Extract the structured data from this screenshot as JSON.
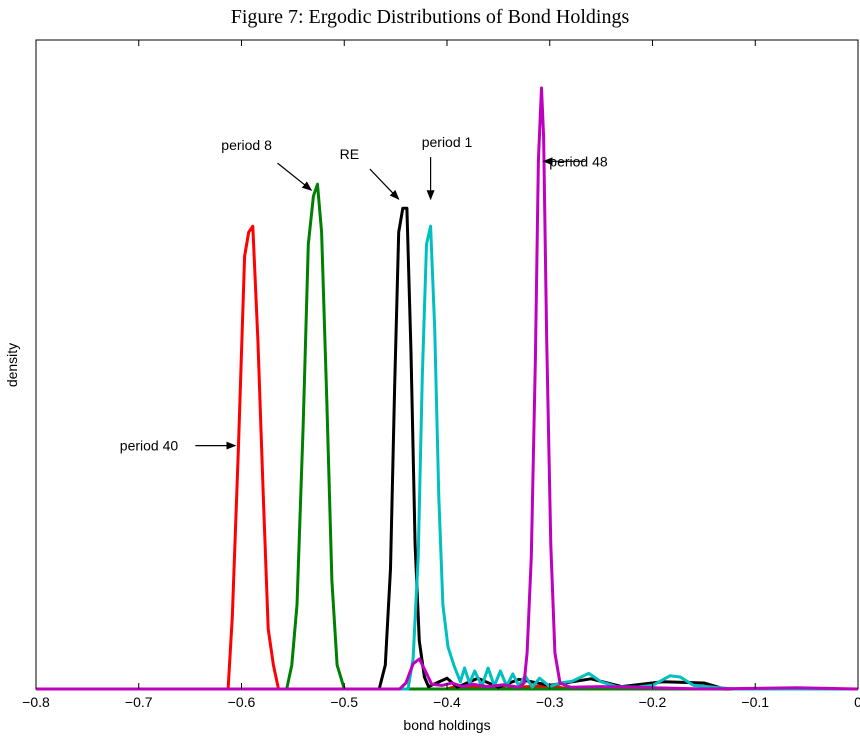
{
  "chart_data": {
    "type": "line",
    "title": "Figure 7: Ergodic Distributions of Bond Holdings",
    "xlabel": "bond holdings",
    "ylabel": "density",
    "xlim": [
      -0.8,
      0
    ],
    "ylim": [
      0,
      1
    ],
    "x_ticks": [
      "−0.8",
      "−0.7",
      "−0.6",
      "−0.5",
      "−0.4",
      "−0.3",
      "−0.2",
      "−0.1",
      "0"
    ],
    "x_tick_values": [
      -0.8,
      -0.7,
      -0.6,
      -0.5,
      -0.4,
      -0.3,
      -0.2,
      -0.1,
      0
    ],
    "grid": false,
    "series": [
      {
        "name": "period 40",
        "color": "#ff0000",
        "points": [
          [
            -0.8,
            0
          ],
          [
            -0.613,
            0
          ],
          [
            -0.609,
            0.12
          ],
          [
            -0.603,
            0.4
          ],
          [
            -0.597,
            0.72
          ],
          [
            -0.593,
            0.76
          ],
          [
            -0.589,
            0.77
          ],
          [
            -0.584,
            0.58
          ],
          [
            -0.579,
            0.33
          ],
          [
            -0.574,
            0.1
          ],
          [
            -0.569,
            0.04
          ],
          [
            -0.564,
            0.0
          ],
          [
            -0.4,
            0.0
          ],
          [
            -0.39,
            0.005
          ],
          [
            -0.34,
            0.003
          ],
          [
            -0.3,
            0.005
          ],
          [
            -0.28,
            0.0
          ],
          [
            0,
            0
          ]
        ]
      },
      {
        "name": "period 8",
        "color": "#008000",
        "points": [
          [
            -0.8,
            0
          ],
          [
            -0.556,
            0
          ],
          [
            -0.551,
            0.04
          ],
          [
            -0.546,
            0.14
          ],
          [
            -0.54,
            0.44
          ],
          [
            -0.535,
            0.74
          ],
          [
            -0.53,
            0.82
          ],
          [
            -0.526,
            0.84
          ],
          [
            -0.522,
            0.76
          ],
          [
            -0.517,
            0.48
          ],
          [
            -0.512,
            0.18
          ],
          [
            -0.507,
            0.04
          ],
          [
            -0.5,
            0.0
          ],
          [
            0,
            0
          ]
        ]
      },
      {
        "name": "RE",
        "color": "#000000",
        "points": [
          [
            -0.8,
            0
          ],
          [
            -0.466,
            0
          ],
          [
            -0.46,
            0.04
          ],
          [
            -0.455,
            0.2
          ],
          [
            -0.451,
            0.5
          ],
          [
            -0.447,
            0.76
          ],
          [
            -0.443,
            0.8
          ],
          [
            -0.439,
            0.8
          ],
          [
            -0.435,
            0.56
          ],
          [
            -0.431,
            0.24
          ],
          [
            -0.427,
            0.08
          ],
          [
            -0.422,
            0.02
          ],
          [
            -0.418,
            0.004
          ],
          [
            -0.4,
            0.018
          ],
          [
            -0.39,
            0.003
          ],
          [
            -0.37,
            0.018
          ],
          [
            -0.35,
            0.003
          ],
          [
            -0.33,
            0.016
          ],
          [
            -0.3,
            0.006
          ],
          [
            -0.26,
            0.017
          ],
          [
            -0.23,
            0.004
          ],
          [
            -0.19,
            0.012
          ],
          [
            -0.15,
            0.01
          ],
          [
            -0.13,
            0.0
          ],
          [
            0,
            0
          ]
        ]
      },
      {
        "name": "period 1",
        "color": "#00bfbf",
        "points": [
          [
            -0.8,
            0
          ],
          [
            -0.438,
            0
          ],
          [
            -0.433,
            0.05
          ],
          [
            -0.428,
            0.22
          ],
          [
            -0.424,
            0.52
          ],
          [
            -0.42,
            0.74
          ],
          [
            -0.416,
            0.77
          ],
          [
            -0.412,
            0.6
          ],
          [
            -0.408,
            0.32
          ],
          [
            -0.404,
            0.14
          ],
          [
            -0.399,
            0.07
          ],
          [
            -0.393,
            0.038
          ],
          [
            -0.387,
            0.012
          ],
          [
            -0.383,
            0.035
          ],
          [
            -0.378,
            0.01
          ],
          [
            -0.373,
            0.03
          ],
          [
            -0.366,
            0.005
          ],
          [
            -0.36,
            0.035
          ],
          [
            -0.354,
            0.005
          ],
          [
            -0.348,
            0.03
          ],
          [
            -0.342,
            0.005
          ],
          [
            -0.336,
            0.025
          ],
          [
            -0.33,
            0.005
          ],
          [
            -0.324,
            0.022
          ],
          [
            -0.317,
            0.003
          ],
          [
            -0.31,
            0.018
          ],
          [
            -0.3,
            0.004
          ],
          [
            -0.29,
            0.01
          ],
          [
            -0.278,
            0.013
          ],
          [
            -0.262,
            0.026
          ],
          [
            -0.25,
            0.012
          ],
          [
            -0.235,
            0.004
          ],
          [
            -0.215,
            0.003
          ],
          [
            -0.2,
            0.006
          ],
          [
            -0.183,
            0.022
          ],
          [
            -0.173,
            0.02
          ],
          [
            -0.16,
            0.006
          ],
          [
            -0.14,
            0.003
          ],
          [
            -0.12,
            0.0
          ],
          [
            0,
            0
          ]
        ]
      },
      {
        "name": "period 48",
        "color": "#bf00bf",
        "points": [
          [
            -0.8,
            0
          ],
          [
            -0.446,
            0
          ],
          [
            -0.44,
            0.01
          ],
          [
            -0.433,
            0.042
          ],
          [
            -0.427,
            0.05
          ],
          [
            -0.421,
            0.03
          ],
          [
            -0.415,
            0.008
          ],
          [
            -0.405,
            0.006
          ],
          [
            -0.395,
            0.01
          ],
          [
            -0.385,
            0.004
          ],
          [
            -0.375,
            0.008
          ],
          [
            -0.36,
            0.004
          ],
          [
            -0.345,
            0.007
          ],
          [
            -0.33,
            0.003
          ],
          [
            -0.325,
            0.01
          ],
          [
            -0.322,
            0.06
          ],
          [
            -0.318,
            0.22
          ],
          [
            -0.314,
            0.55
          ],
          [
            -0.311,
            0.88
          ],
          [
            -0.308,
            1.0
          ],
          [
            -0.306,
            0.92
          ],
          [
            -0.303,
            0.58
          ],
          [
            -0.299,
            0.24
          ],
          [
            -0.295,
            0.06
          ],
          [
            -0.29,
            0.01
          ],
          [
            -0.28,
            0.003
          ],
          [
            -0.25,
            0.004
          ],
          [
            -0.2,
            0.002
          ],
          [
            -0.15,
            0.0
          ],
          [
            -0.06,
            0.002
          ],
          [
            0,
            0
          ]
        ]
      }
    ],
    "annotations": [
      {
        "text": "period 8",
        "x": -0.595,
        "y": 0.905,
        "arrow_from": [
          -0.565,
          0.875
        ],
        "arrow_to": [
          -0.532,
          0.83
        ]
      },
      {
        "text": "RE",
        "x": -0.495,
        "y": 0.89,
        "arrow_from": [
          -0.475,
          0.865
        ],
        "arrow_to": [
          -0.447,
          0.815
        ]
      },
      {
        "text": "period 1",
        "x": -0.4,
        "y": 0.91,
        "arrow_from": [
          -0.416,
          0.885
        ],
        "arrow_to": [
          -0.416,
          0.815
        ]
      },
      {
        "text": "period 48",
        "x": -0.272,
        "y": 0.878,
        "arrow_from": [
          -0.265,
          0.878
        ],
        "arrow_to": [
          -0.306,
          0.878
        ]
      },
      {
        "text": "period 40",
        "x": -0.69,
        "y": 0.405,
        "arrow_from": [
          -0.645,
          0.405
        ],
        "arrow_to": [
          -0.606,
          0.405
        ]
      }
    ]
  }
}
